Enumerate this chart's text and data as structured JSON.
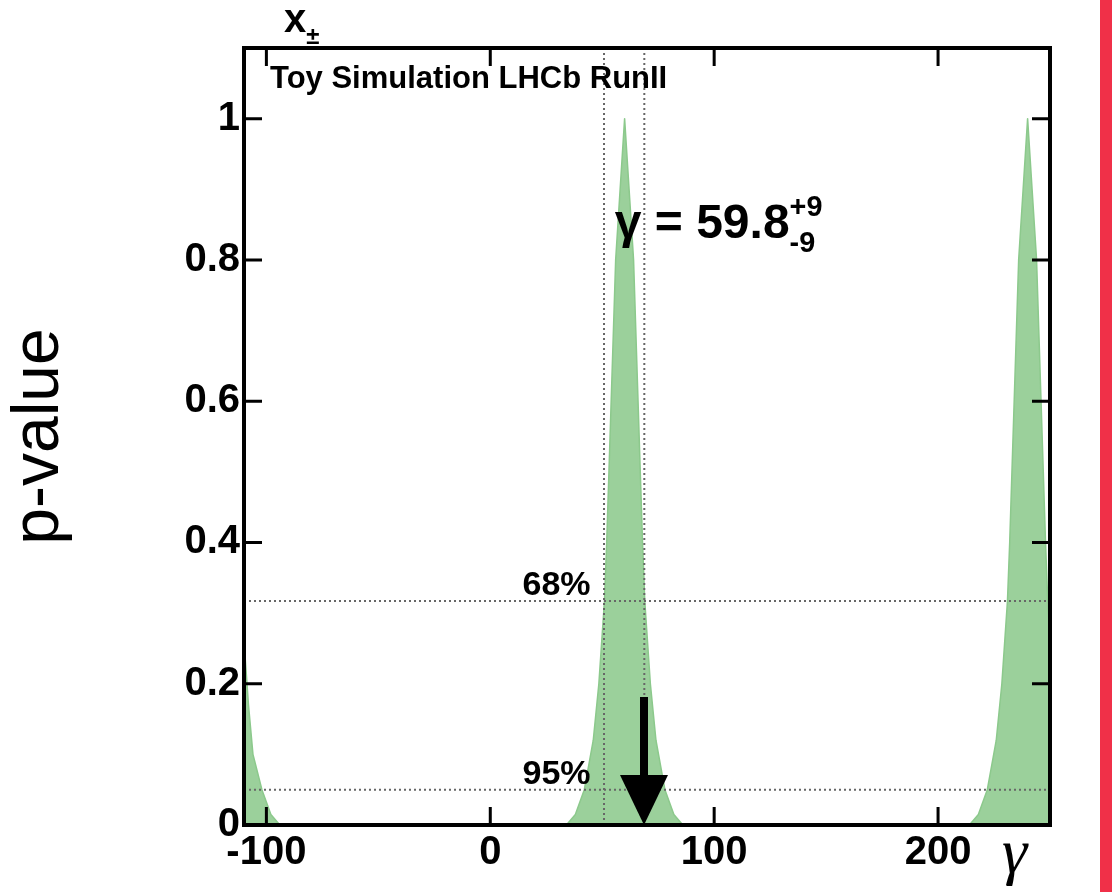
{
  "chart_data": {
    "type": "area",
    "xlabel": "γ",
    "ylabel": "p-value",
    "xlim": [
      -110,
      250
    ],
    "xticks": [
      -100,
      0,
      100,
      200
    ],
    "ylim": [
      0,
      1.1
    ],
    "yticks": [
      0,
      0.2,
      0.4,
      0.6,
      0.8,
      1
    ],
    "x": [
      -110,
      -108,
      -106,
      -102,
      -98,
      -94,
      34,
      38,
      42,
      46,
      48.5,
      51,
      52,
      54,
      56,
      58,
      60,
      62,
      64,
      66,
      68,
      69,
      71.5,
      74,
      78,
      82,
      86,
      214,
      218,
      222,
      226,
      228.5,
      231,
      232,
      234,
      236,
      238,
      240,
      242,
      244,
      246,
      248,
      249,
      250
    ],
    "series": [
      {
        "color": "#8cc98c",
        "values": [
          0.26,
          0.17,
          0.1,
          0.05,
          0.015,
          0,
          0,
          0.015,
          0.05,
          0.12,
          0.2,
          0.317,
          0.4,
          0.6,
          0.8,
          0.9,
          1,
          0.9,
          0.8,
          0.6,
          0.4,
          0.317,
          0.2,
          0.12,
          0.05,
          0.015,
          0,
          0,
          0.015,
          0.05,
          0.12,
          0.2,
          0.317,
          0.4,
          0.6,
          0.8,
          0.9,
          1,
          0.9,
          0.8,
          0.6,
          0.4,
          0.317,
          0.26
        ]
      }
    ],
    "ref_lines": [
      {
        "axis": "y",
        "value": 0.317,
        "line_style": "dotted",
        "color": "#666666"
      },
      {
        "axis": "y",
        "value": 0.05,
        "line_style": "dotted",
        "color": "#666666"
      },
      {
        "axis": "x",
        "value": 50.8,
        "line_style": "dotted",
        "color": "#666666"
      },
      {
        "axis": "x",
        "value": 68.8,
        "line_style": "dotted",
        "color": "#666666"
      }
    ],
    "annotations": [
      "Toy Simulation LHCb RunII",
      "γ = 59.8$^{+9}$$_{-9}$",
      "x$_{±}$",
      {
        "text": "68%",
        "y": 0.317
      },
      {
        "text": "95%",
        "y": 0.05
      }
    ]
  }
}
